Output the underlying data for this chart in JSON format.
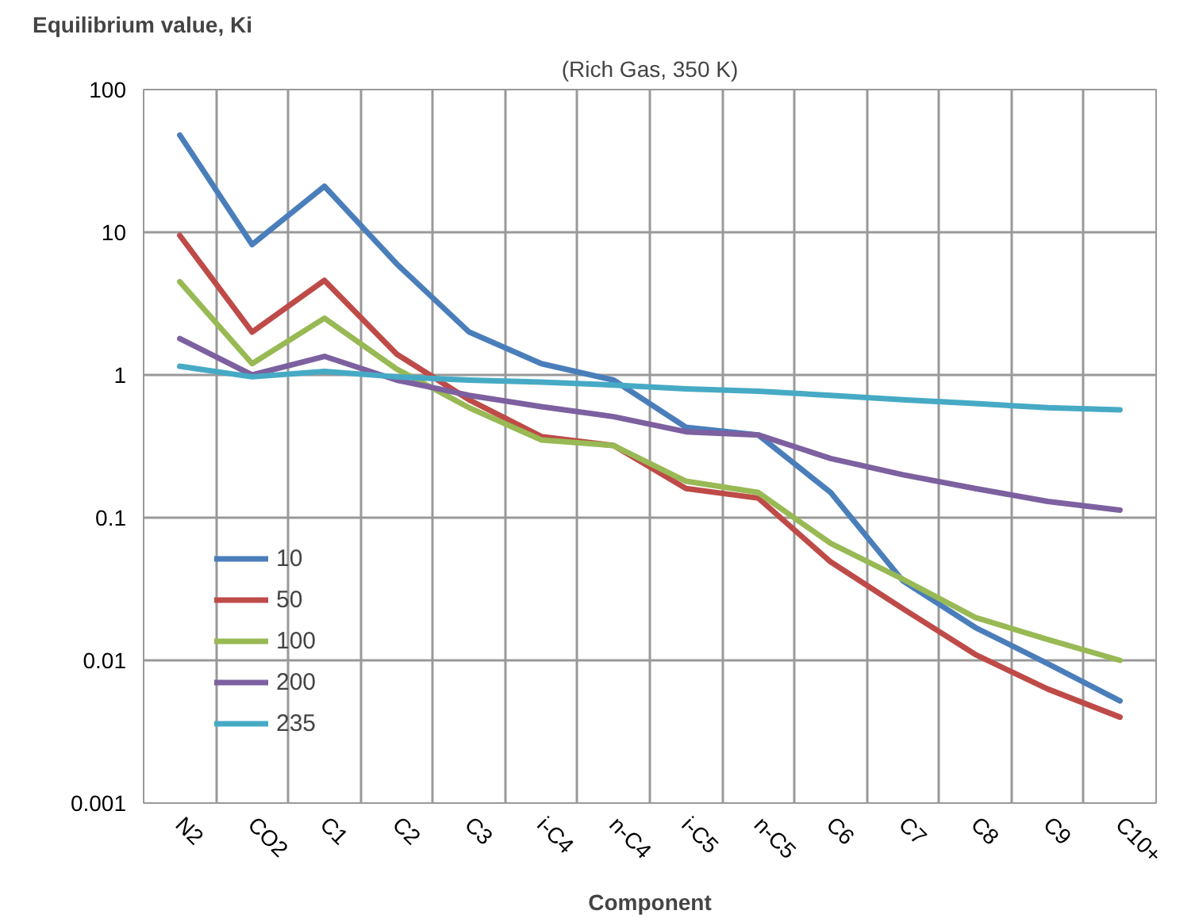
{
  "chart_data": {
    "type": "line",
    "title": "(Rich Gas, 350 K)",
    "xlabel": "Component",
    "ylabel": "Equilibrium value, Ki",
    "categories": [
      "N2",
      "CO2",
      "C1",
      "C2",
      "C3",
      "i-C4",
      "n-C4",
      "i-C5",
      "n-C5",
      "C6",
      "C7",
      "C8",
      "C9",
      "C10+"
    ],
    "series": [
      {
        "name": "10",
        "color": "#4a7ebb",
        "values": [
          48,
          8.2,
          21,
          6,
          2,
          1.2,
          0.92,
          0.43,
          0.38,
          0.15,
          0.036,
          0.017,
          0.0095,
          0.0052
        ]
      },
      {
        "name": "50",
        "color": "#be4b48",
        "values": [
          9.5,
          2.0,
          4.6,
          1.4,
          0.67,
          0.37,
          0.32,
          0.16,
          0.137,
          0.049,
          0.023,
          0.011,
          0.0063,
          0.004
        ]
      },
      {
        "name": "100",
        "color": "#98b954",
        "values": [
          4.5,
          1.2,
          2.5,
          1.1,
          0.59,
          0.35,
          0.32,
          0.18,
          0.15,
          0.066,
          0.037,
          0.02,
          0.014,
          0.01
        ]
      },
      {
        "name": "200",
        "color": "#7d60a0",
        "values": [
          1.8,
          1.0,
          1.35,
          0.92,
          0.72,
          0.6,
          0.51,
          0.4,
          0.38,
          0.26,
          0.2,
          0.16,
          0.13,
          0.113
        ]
      },
      {
        "name": "235",
        "color": "#46aac5",
        "values": [
          1.15,
          0.97,
          1.06,
          0.97,
          0.92,
          0.89,
          0.85,
          0.8,
          0.77,
          0.72,
          0.67,
          0.63,
          0.59,
          0.57
        ]
      }
    ],
    "log": "y",
    "ylim": [
      0.001,
      100
    ],
    "yticks": [
      0.001,
      0.01,
      0.1,
      1,
      10,
      100
    ],
    "grid": true,
    "legend": "left",
    "marker": "none",
    "line_style": "solid"
  }
}
